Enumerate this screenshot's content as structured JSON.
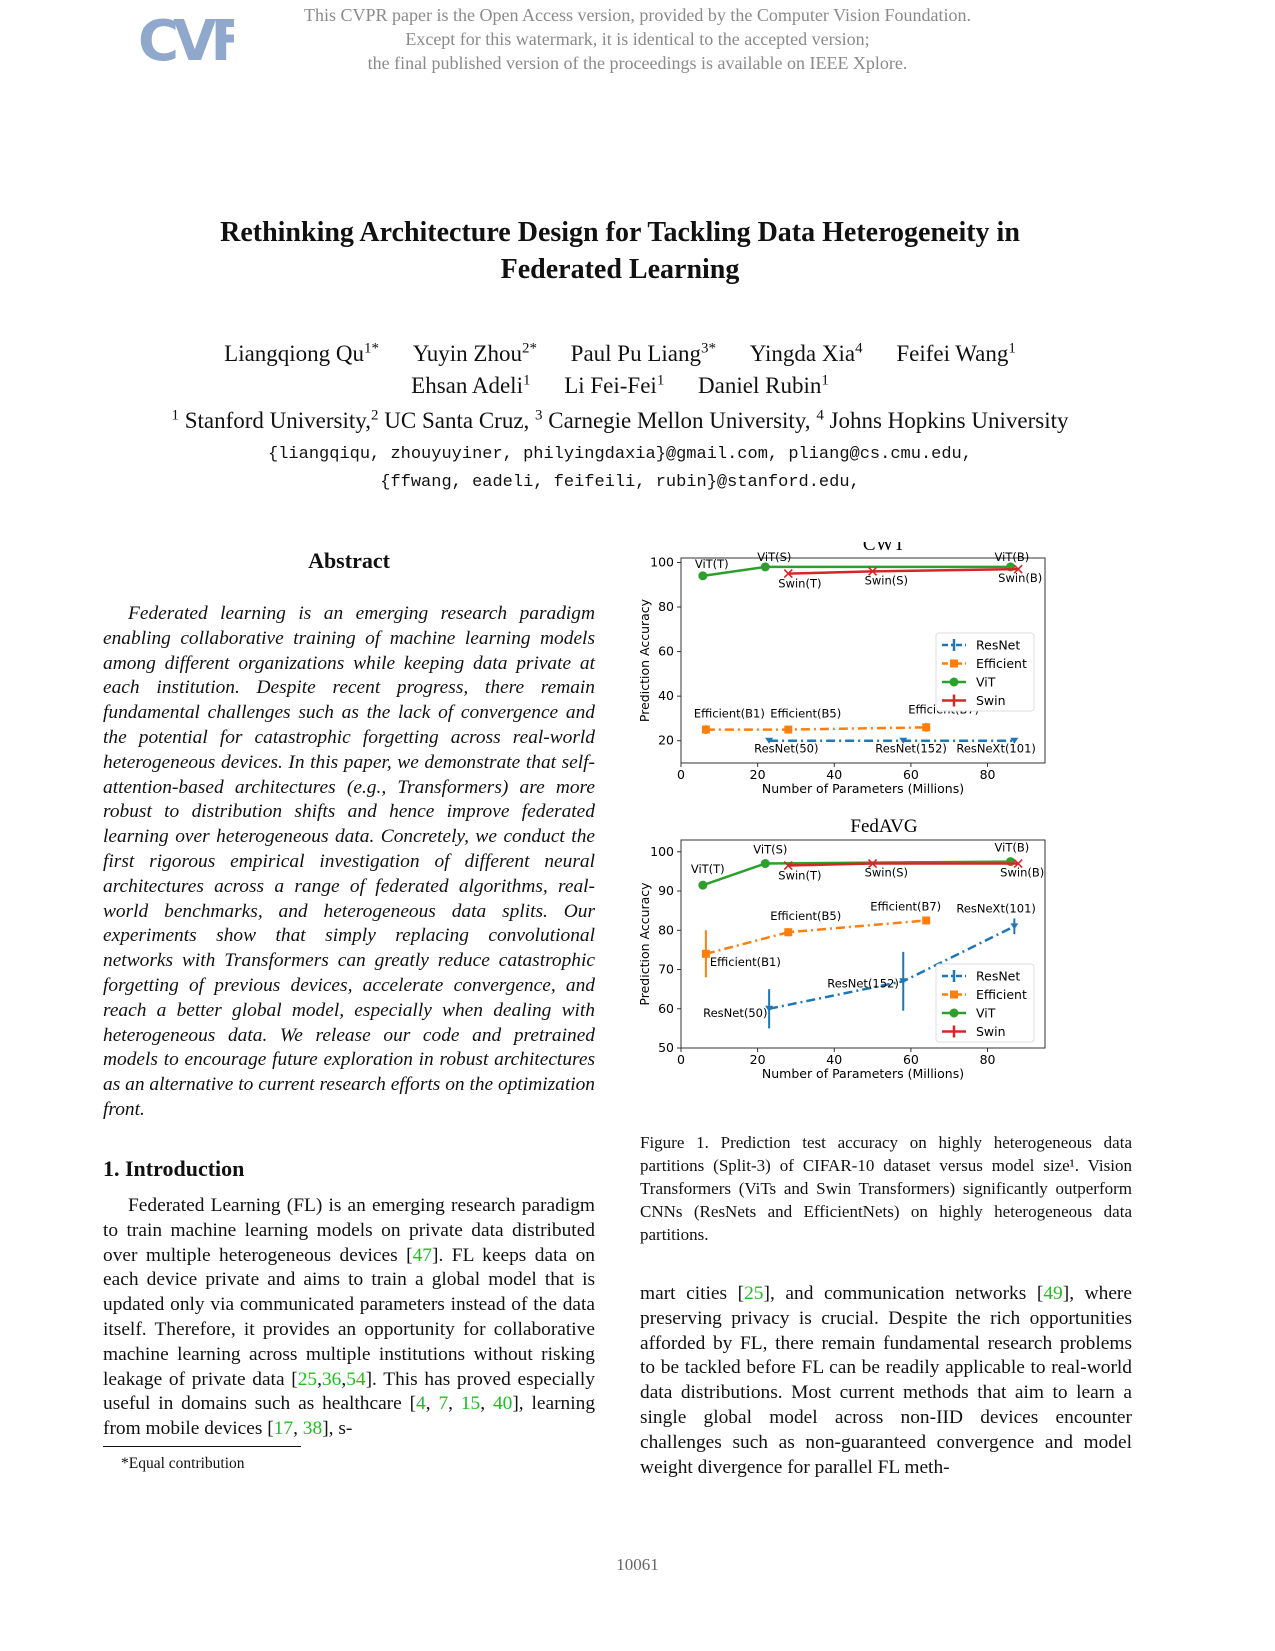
{
  "watermark": {
    "line1": "This CVPR paper is the Open Access version, provided by the Computer Vision Foundation.",
    "line2": "Except for this watermark, it is identical to the accepted version;",
    "line3": "the final published version of the proceedings is available on IEEE Xplore."
  },
  "logo": "CVF",
  "title": {
    "line1": "Rethinking Architecture Design for Tackling Data Heterogeneity in",
    "line2": "Federated Learning"
  },
  "authors": {
    "row1": [
      {
        "name": "Liangqiong Qu",
        "sup": "1*"
      },
      {
        "name": "Yuyin Zhou",
        "sup": "2*"
      },
      {
        "name": "Paul Pu Liang",
        "sup": "3*"
      },
      {
        "name": "Yingda Xia",
        "sup": "4"
      },
      {
        "name": "Feifei Wang",
        "sup": "1"
      }
    ],
    "row2": [
      {
        "name": "Ehsan Adeli",
        "sup": "1"
      },
      {
        "name": "Li Fei-Fei",
        "sup": "1"
      },
      {
        "name": "Daniel Rubin",
        "sup": "1"
      }
    ]
  },
  "affiliations": [
    {
      "sup": "1",
      "name": "Stanford University,"
    },
    {
      "sup": "2",
      "name": "UC Santa Cruz,"
    },
    {
      "sup": "3",
      "name": "Carnegie Mellon University,"
    },
    {
      "sup": "4",
      "name": "Johns Hopkins University"
    }
  ],
  "emails": {
    "line1": "{liangqiqu, zhouyuyiner, philyingdaxia}@gmail.com, pliang@cs.cmu.edu,",
    "line2": "{ffwang, eadeli, feifeili, rubin}@stanford.edu,"
  },
  "abstract": {
    "heading": "Abstract",
    "text": "Federated learning is an emerging research paradigm enabling collaborative training of machine learning models among different organizations while keeping data private at each institution. Despite recent progress, there remain fundamental challenges such as the lack of convergence and the potential for catastrophic forgetting across real-world heterogeneous devices. In this paper, we demonstrate that self-attention-based architectures (e.g., Transformers) are more robust to distribution shifts and hence improve federated learning over heterogeneous data. Concretely, we conduct the first rigorous empirical investigation of different neural architectures across a range of federated algorithms, real-world benchmarks, and heterogeneous data splits. Our experiments show that simply replacing convolutional networks with Transformers can greatly reduce catastrophic forgetting of previous devices, accelerate convergence, and reach a better global model, especially when dealing with heterogeneous data. We release our code and pretrained models to encourage future exploration in robust architectures as an alternative to current research efforts on the optimization front."
  },
  "intro": {
    "heading": "1. Introduction",
    "p1_a": "Federated Learning (FL) is an emerging research paradigm to train machine learning models on private data distributed over multiple heterogeneous devices [",
    "c47": "47",
    "p1_b": "]. FL keeps data on each device private and aims to train a global model that is updated only via communicated parameters instead of the data itself. Therefore, it provides an opportunity for collaborative machine learning across multiple institutions without risking leakage of private data [",
    "c25": "25",
    "c36": "36",
    "c54": "54",
    "p1_c": "]. This has proved especially useful in domains such as healthcare [",
    "c4": "4",
    "c7": "7",
    "c15": "15",
    "c40": "40",
    "p1_d": "], learning from mobile devices [",
    "c17": "17",
    "c38": "38",
    "p1_e": "], s-",
    "right_a": "mart cities [",
    "rc25": "25",
    "right_b": "], and communication networks [",
    "rc49": "49",
    "right_c": "], where preserving privacy is crucial. Despite the rich opportunities afforded by FL, there remain fundamental research problems to be tackled before FL can be readily applicable to real-world data distributions. Most current methods that aim to learn a single global model across non-IID devices encounter challenges such as non-guaranteed convergence and model weight divergence for parallel FL meth-"
  },
  "footnote": "*Equal contribution",
  "caption": "Figure 1. Prediction test accuracy on highly heterogeneous data partitions (Split-3) of CIFAR-10 dataset versus model size¹. Vision Transformers (ViTs and Swin Transformers) significantly outperform CNNs (ResNets and EfficientNets) on highly heterogeneous data partitions.",
  "page_number": "10061",
  "colors": {
    "ResNet": "#1f77b4",
    "Efficient": "#ff7f0e",
    "ViT": "#2ca02c",
    "Swin": "#d62728",
    "citation": "#1fbf1f"
  },
  "chart_data": [
    {
      "type": "line",
      "title": "CWT",
      "xlabel": "Number of Parameters (Millions)",
      "ylabel": "Prediction Accuracy",
      "xlim": [
        0,
        95
      ],
      "ylim": [
        10,
        102
      ],
      "xticks": [
        0,
        20,
        40,
        60,
        80
      ],
      "yticks": [
        20,
        40,
        60,
        80,
        100
      ],
      "legend": "right",
      "series": [
        {
          "name": "ResNet",
          "style": "dashdot",
          "marker": "tri",
          "points": [
            {
              "x": 23,
              "y": 20,
              "label": "ResNet(50)"
            },
            {
              "x": 58,
              "y": 20,
              "label": "ResNet(152)"
            },
            {
              "x": 87,
              "y": 20,
              "label": "ResNeXt(101)"
            }
          ]
        },
        {
          "name": "Efficient",
          "style": "dashdot",
          "marker": "square",
          "points": [
            {
              "x": 6.5,
              "y": 25,
              "err": 2,
              "label": "Efficient(B1)"
            },
            {
              "x": 28,
              "y": 25,
              "err": 1.5,
              "label": "Efficient(B5)"
            },
            {
              "x": 64,
              "y": 26,
              "err": 2,
              "label": "Efficient(B7)"
            }
          ]
        },
        {
          "name": "ViT",
          "style": "solid",
          "marker": "circle",
          "points": [
            {
              "x": 5.7,
              "y": 94,
              "label": "ViT(T)"
            },
            {
              "x": 22,
              "y": 98,
              "label": "ViT(S)"
            },
            {
              "x": 86,
              "y": 98,
              "label": "ViT(B)"
            }
          ]
        },
        {
          "name": "Swin",
          "style": "solid",
          "marker": "cross",
          "points": [
            {
              "x": 28,
              "y": 95,
              "label": "Swin(T)"
            },
            {
              "x": 50,
              "y": 96,
              "label": "Swin(S)"
            },
            {
              "x": 88,
              "y": 97,
              "label": "Swin(B)"
            }
          ]
        }
      ]
    },
    {
      "type": "line",
      "title": "FedAVG",
      "xlabel": "Number of Parameters (Millions)",
      "ylabel": "Prediction Accuracy",
      "xlim": [
        0,
        95
      ],
      "ylim": [
        50,
        103
      ],
      "xticks": [
        0,
        20,
        40,
        60,
        80
      ],
      "yticks": [
        50,
        60,
        70,
        80,
        90,
        100
      ],
      "legend": "lower right",
      "series": [
        {
          "name": "ResNet",
          "style": "dashdot",
          "marker": "tri",
          "points": [
            {
              "x": 23,
              "y": 60,
              "err": 5,
              "label": "ResNet(50)"
            },
            {
              "x": 58,
              "y": 67,
              "err": 7.5,
              "label": "ResNet(152)"
            },
            {
              "x": 87,
              "y": 81,
              "err": 2,
              "label": "ResNeXt(101)"
            }
          ]
        },
        {
          "name": "Efficient",
          "style": "dashdot",
          "marker": "square",
          "points": [
            {
              "x": 6.5,
              "y": 74,
              "err": 6,
              "label": "Efficient(B1)"
            },
            {
              "x": 28,
              "y": 79.5,
              "err": 1,
              "label": "Efficient(B5)"
            },
            {
              "x": 64,
              "y": 82.5,
              "err": 1,
              "label": "Efficient(B7)"
            }
          ]
        },
        {
          "name": "ViT",
          "style": "solid",
          "marker": "circle",
          "points": [
            {
              "x": 5.7,
              "y": 91.5,
              "label": "ViT(T)"
            },
            {
              "x": 22,
              "y": 97,
              "label": "ViT(S)"
            },
            {
              "x": 86,
              "y": 97.5,
              "label": "ViT(B)"
            }
          ]
        },
        {
          "name": "Swin",
          "style": "solid",
          "marker": "cross",
          "points": [
            {
              "x": 28,
              "y": 96.5,
              "label": "Swin(T)"
            },
            {
              "x": 50,
              "y": 97,
              "label": "Swin(S)"
            },
            {
              "x": 88,
              "y": 97,
              "label": "Swin(B)"
            }
          ]
        }
      ]
    }
  ]
}
